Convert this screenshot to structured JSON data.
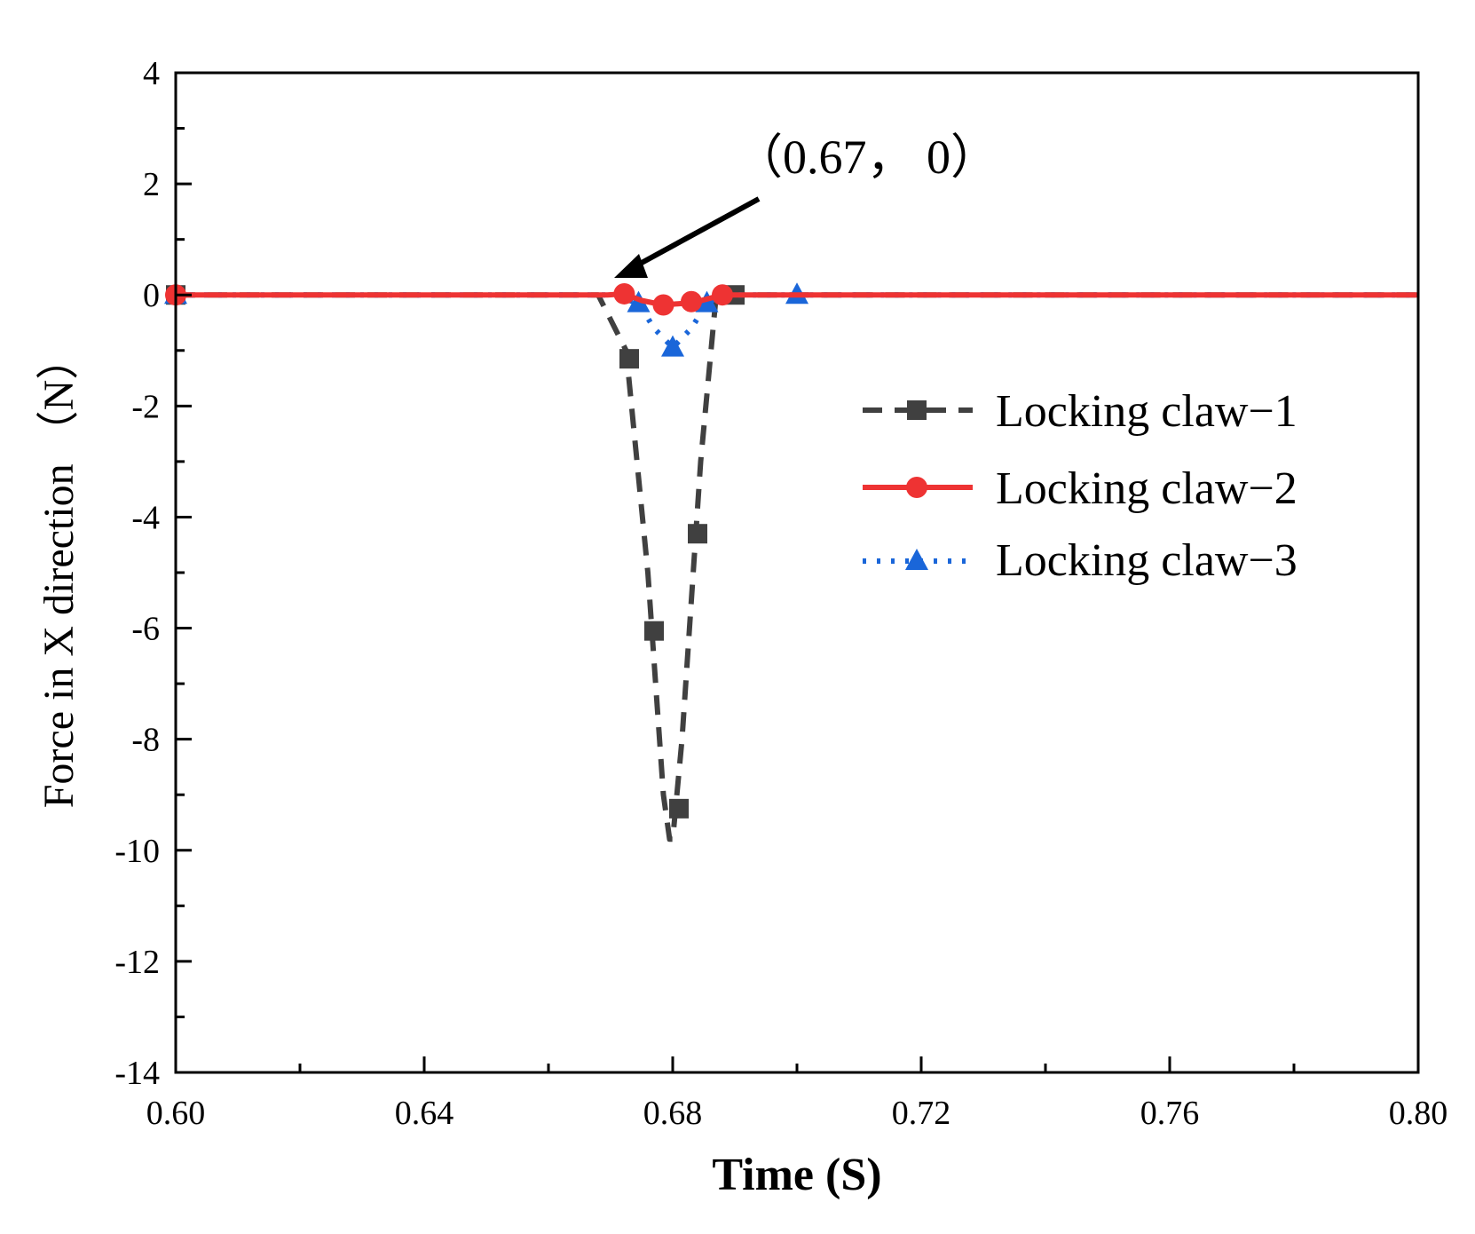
{
  "chart_data": {
    "type": "line",
    "title": "",
    "xlabel": "Time (S)",
    "ylabel": "Force in X direction （N）",
    "xlim": [
      0.6,
      0.8
    ],
    "ylim": [
      -14,
      4
    ],
    "xticks": [
      "0.60",
      "0.64",
      "0.68",
      "0.72",
      "0.76",
      "0.80"
    ],
    "xtick_values": [
      0.6,
      0.64,
      0.68,
      0.72,
      0.76,
      0.8
    ],
    "yticks": [
      "4",
      "2",
      "0",
      "-2",
      "-4",
      "-6",
      "-8",
      "-10",
      "-12",
      "-14"
    ],
    "ytick_values": [
      4,
      2,
      0,
      -2,
      -4,
      -6,
      -8,
      -10,
      -12,
      -14
    ],
    "grid": false,
    "legend_position": "right",
    "annotation": {
      "text": "（0.67， 0）",
      "x": 0.67,
      "y": 0
    },
    "series": [
      {
        "name": "Locking claw−1",
        "color": "#404040",
        "style": "dashed",
        "marker": "square",
        "line_x": [
          0.6,
          0.668,
          0.6725,
          0.676,
          0.6785,
          0.6795,
          0.68,
          0.6815,
          0.6845,
          0.687,
          0.689,
          0.8
        ],
        "line_y": [
          0,
          0,
          -1.0,
          -5.0,
          -9.0,
          -9.8,
          -9.8,
          -8.0,
          -3.0,
          0,
          0,
          0
        ],
        "marker_x": [
          0.6,
          0.673,
          0.677,
          0.681,
          0.684,
          0.69
        ],
        "marker_y": [
          0,
          -1.15,
          -6.05,
          -9.25,
          -4.3,
          0
        ]
      },
      {
        "name": "Locking claw−2",
        "color": "#ee3333",
        "style": "solid",
        "marker": "circle",
        "line_x": [
          0.6,
          0.6695,
          0.6722,
          0.675,
          0.6785,
          0.682,
          0.684,
          0.688,
          0.69,
          0.8
        ],
        "line_y": [
          0,
          0,
          0.02,
          -0.1,
          -0.18,
          -0.15,
          -0.12,
          0,
          0,
          0
        ],
        "marker_x": [
          0.6,
          0.6722,
          0.6785,
          0.683,
          0.688
        ],
        "marker_y": [
          0,
          0.02,
          -0.18,
          -0.12,
          0
        ]
      },
      {
        "name": "Locking claw−3",
        "color": "#1a66d9",
        "style": "dotted",
        "marker": "triangle",
        "line_x": [
          0.6,
          0.67,
          0.6745,
          0.677,
          0.68,
          0.683,
          0.6855,
          0.688,
          0.8
        ],
        "line_y": [
          0,
          0,
          -0.15,
          -0.6,
          -0.95,
          -0.6,
          -0.15,
          0,
          0
        ],
        "marker_x": [
          0.6,
          0.6745,
          0.68,
          0.6855,
          0.7
        ],
        "marker_y": [
          0,
          -0.15,
          -0.95,
          -0.15,
          0
        ]
      }
    ]
  }
}
